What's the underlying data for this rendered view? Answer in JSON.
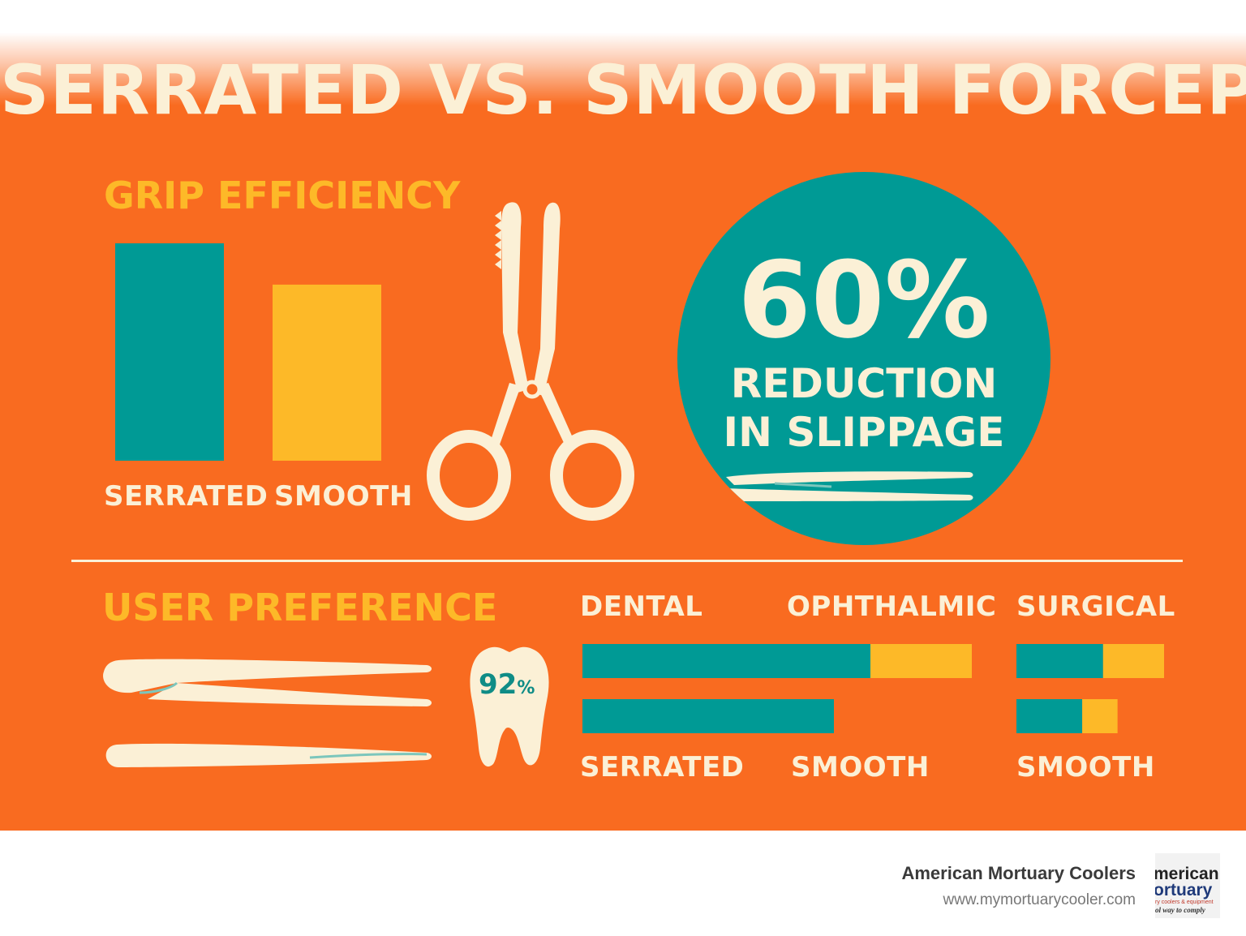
{
  "title": "SERRATED VS. SMOOTH FORCEPS",
  "grip_section": {
    "title": "GRIP EFFICIENCY",
    "labels": [
      "SERRATED",
      "SMOOTH"
    ]
  },
  "stat": {
    "value": "60%",
    "line1": "REDUCTION",
    "line2": "IN SLIPPAGE"
  },
  "preference_section": {
    "title": "USER PREFERENCE",
    "tooth_value": "92",
    "tooth_unit": "%",
    "category_labels": [
      "DENTAL",
      "OPHTHALMIC",
      "SURGICAL"
    ],
    "bottom_labels": [
      "SERRATED",
      "SMOOTH",
      "SMOOTH"
    ]
  },
  "chart_data": [
    {
      "type": "bar",
      "title": "GRIP EFFICIENCY",
      "categories": [
        "SERRATED",
        "SMOOTH"
      ],
      "values": [
        100,
        81
      ],
      "colors": [
        "#009A95",
        "#FDB928"
      ]
    },
    {
      "type": "bar",
      "orientation": "horizontal",
      "stacked": true,
      "title": "USER PREFERENCE",
      "groups": [
        {
          "rows": [
            {
              "segments": [
                71,
                25
              ]
            },
            {
              "segments": [
                62,
                0
              ]
            }
          ]
        },
        {
          "rows": [
            {
              "segments": [
                54,
                38
              ]
            },
            {
              "segments": [
                41,
                22
              ]
            }
          ]
        }
      ],
      "colors": [
        "#009A95",
        "#FDB928"
      ]
    }
  ],
  "footer": {
    "company": "American Mortuary Coolers",
    "url": "www.mymortuarycooler.com"
  },
  "logo": {
    "line1": "merican",
    "line2": "ortuary",
    "line3": "ry coolers & equipment",
    "line4": "ol way to comply"
  },
  "colors": {
    "background": "#F96B20",
    "teal": "#009A95",
    "yellow": "#FDB928",
    "cream": "#FBF0D6"
  }
}
